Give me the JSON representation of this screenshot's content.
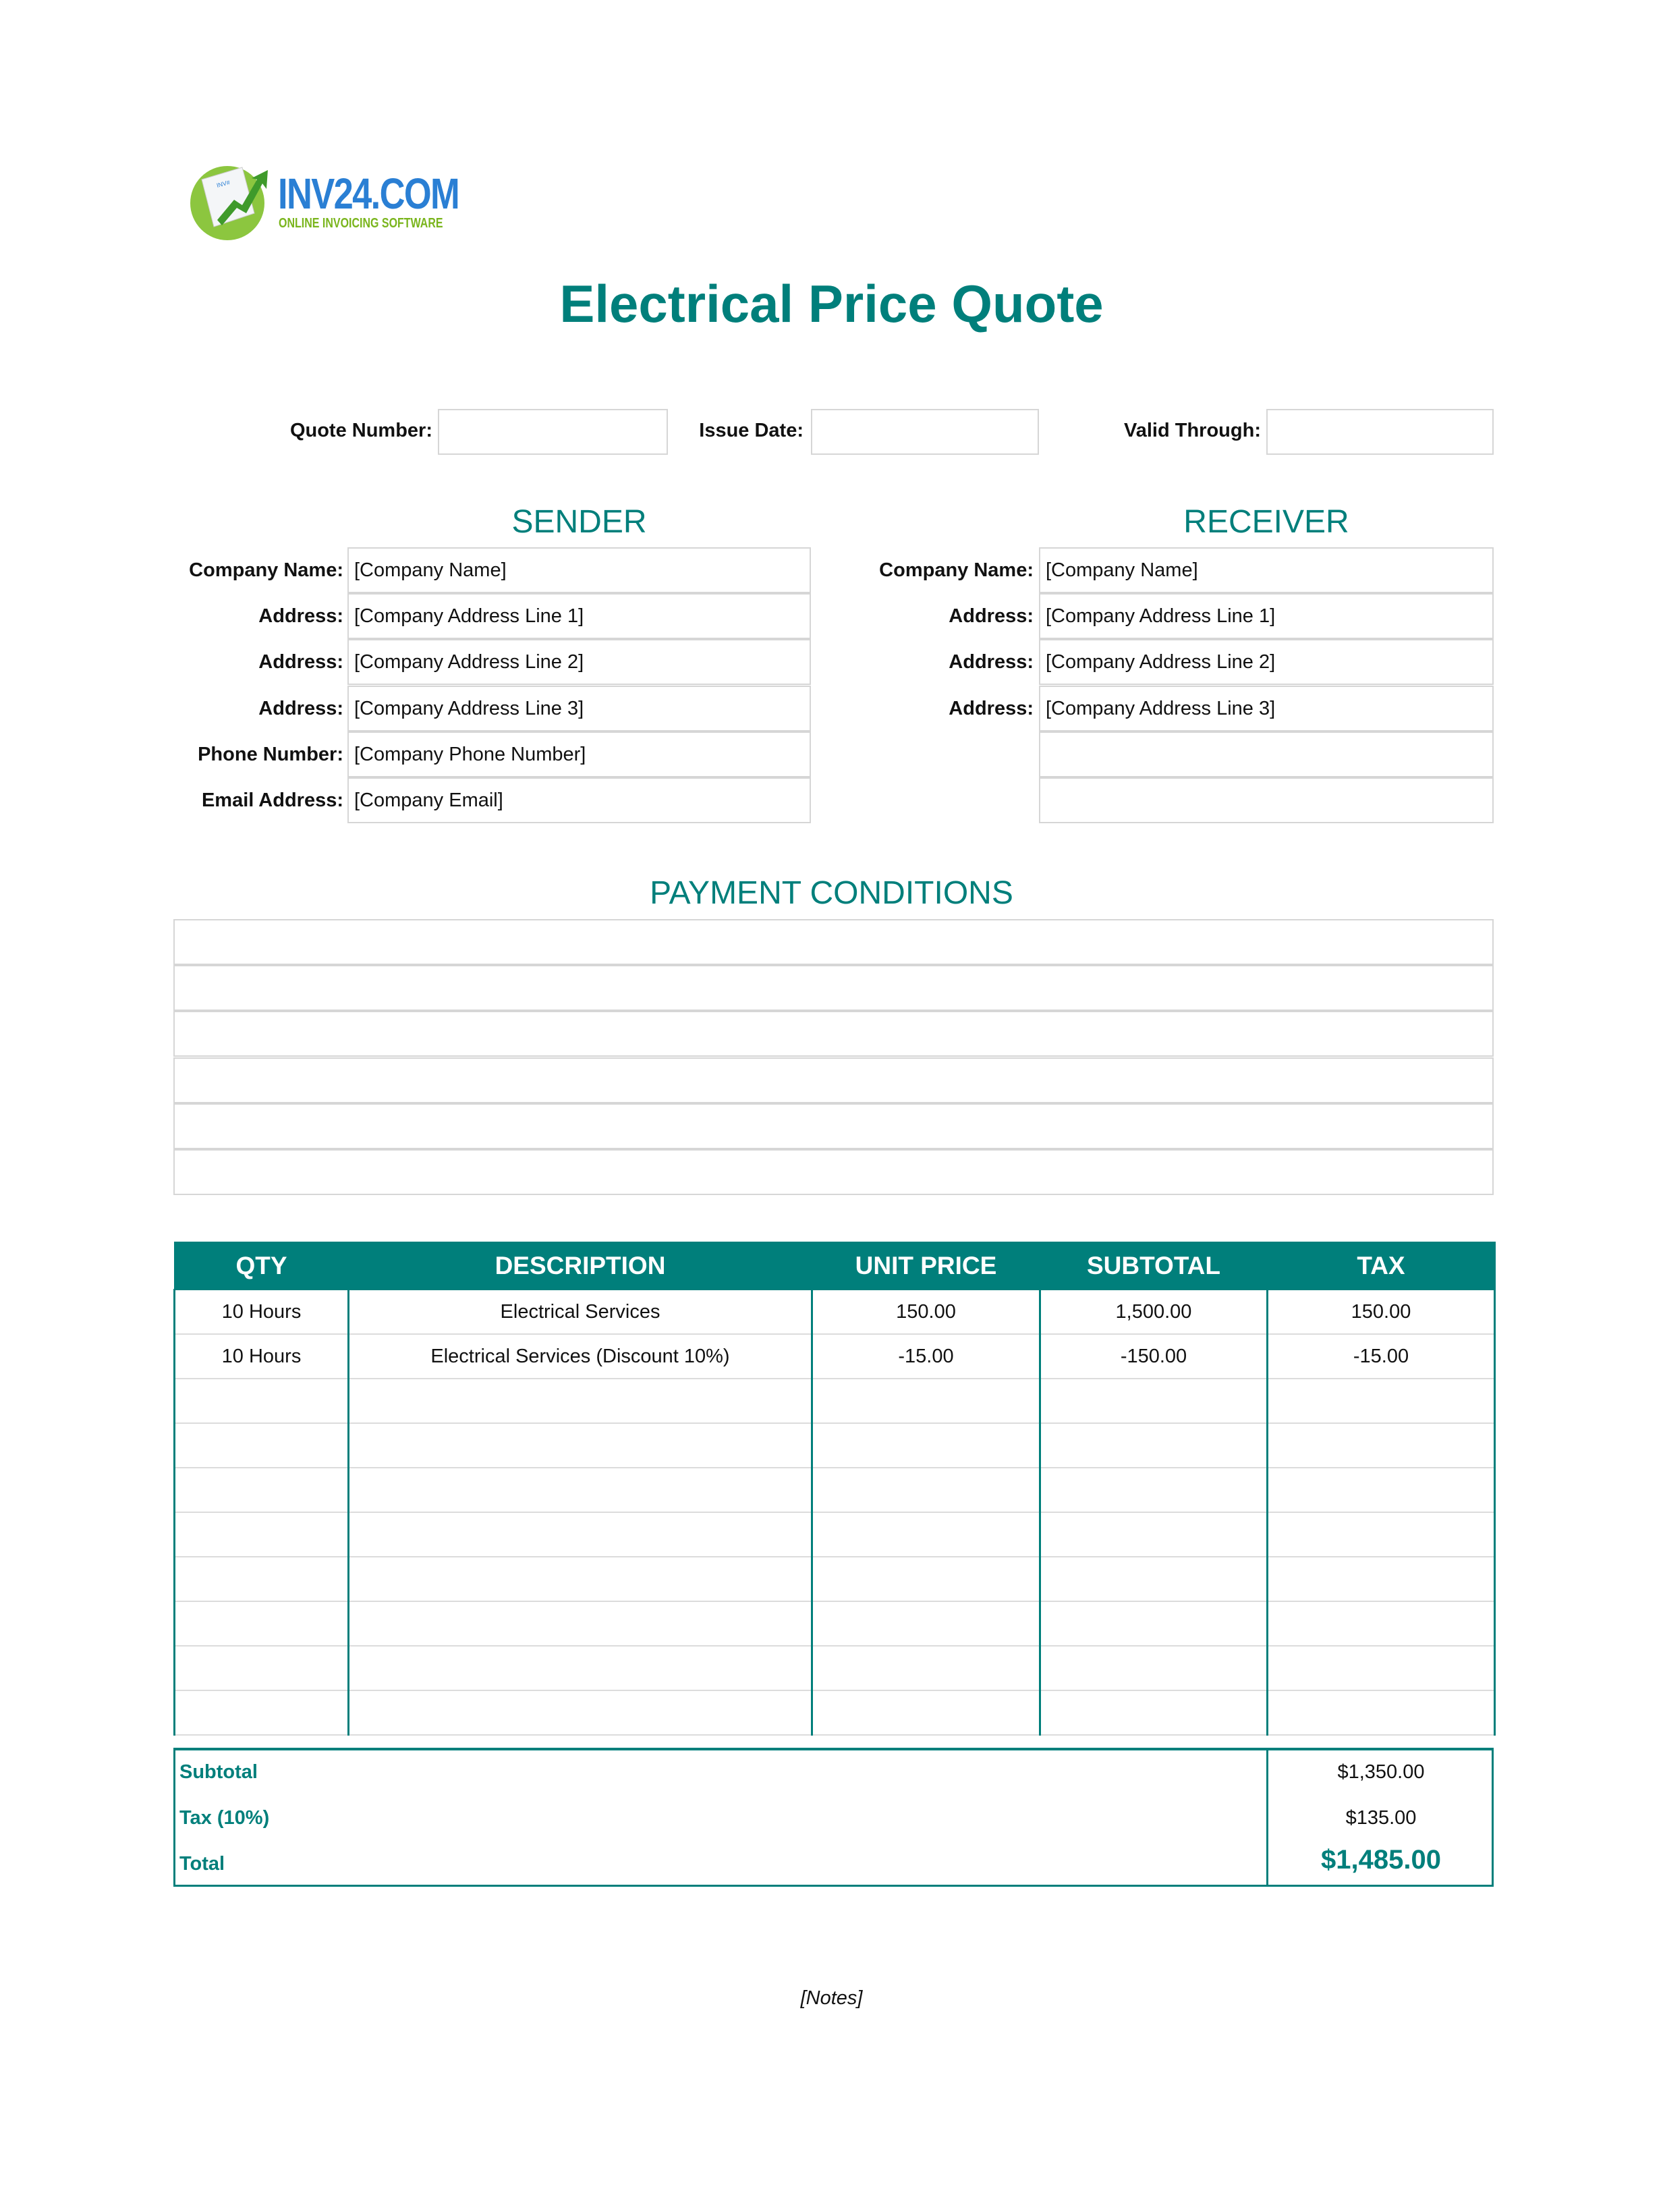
{
  "logo": {
    "brand": "INV24.COM",
    "tagline": "ONLINE INVOICING SOFTWARE"
  },
  "title": "Electrical Price Quote",
  "meta": {
    "quote_number_label": "Quote Number:",
    "quote_number": "",
    "issue_date_label": "Issue Date:",
    "issue_date": "",
    "valid_through_label": "Valid Through:",
    "valid_through": ""
  },
  "sender": {
    "heading": "SENDER",
    "fields": [
      {
        "label": "Company Name:",
        "value": "[Company Name]"
      },
      {
        "label": "Address:",
        "value": "[Company Address Line 1]"
      },
      {
        "label": "Address:",
        "value": "[Company Address Line 2]"
      },
      {
        "label": "Address:",
        "value": "[Company Address Line 3]"
      },
      {
        "label": "Phone Number:",
        "value": "[Company Phone Number]"
      },
      {
        "label": "Email Address:",
        "value": "[Company Email]"
      }
    ]
  },
  "receiver": {
    "heading": "RECEIVER",
    "fields": [
      {
        "label": "Company Name:",
        "value": "[Company Name]"
      },
      {
        "label": "Address:",
        "value": "[Company Address Line 1]"
      },
      {
        "label": "Address:",
        "value": "[Company Address Line 2]"
      },
      {
        "label": "Address:",
        "value": "[Company Address Line 3]"
      },
      {
        "label": "",
        "value": ""
      },
      {
        "label": "",
        "value": ""
      }
    ]
  },
  "payment": {
    "heading": "PAYMENT CONDITIONS",
    "lines": [
      "",
      "",
      "",
      "",
      "",
      ""
    ]
  },
  "items": {
    "columns": [
      "QTY",
      "DESCRIPTION",
      "UNIT PRICE",
      "SUBTOTAL",
      "TAX"
    ],
    "rows": [
      [
        "10 Hours",
        "Electrical Services",
        "150.00",
        "1,500.00",
        "150.00"
      ],
      [
        "10 Hours",
        "Electrical Services (Discount 10%)",
        "-15.00",
        "-150.00",
        "-15.00"
      ],
      [
        "",
        "",
        "",
        "",
        ""
      ],
      [
        "",
        "",
        "",
        "",
        ""
      ],
      [
        "",
        "",
        "",
        "",
        ""
      ],
      [
        "",
        "",
        "",
        "",
        ""
      ],
      [
        "",
        "",
        "",
        "",
        ""
      ],
      [
        "",
        "",
        "",
        "",
        ""
      ],
      [
        "",
        "",
        "",
        "",
        ""
      ],
      [
        "",
        "",
        "",
        "",
        ""
      ]
    ]
  },
  "totals": {
    "subtotal_label": "Subtotal",
    "subtotal": "$1,350.00",
    "tax_label": "Tax (10%)",
    "tax": "$135.00",
    "total_label": "Total",
    "total": "$1,485.00"
  },
  "notes": "[Notes]",
  "colors": {
    "accent": "#007f7b",
    "logo_blue": "#2a7fd4",
    "logo_green": "#7ab51d",
    "border": "#d6d6d6"
  }
}
